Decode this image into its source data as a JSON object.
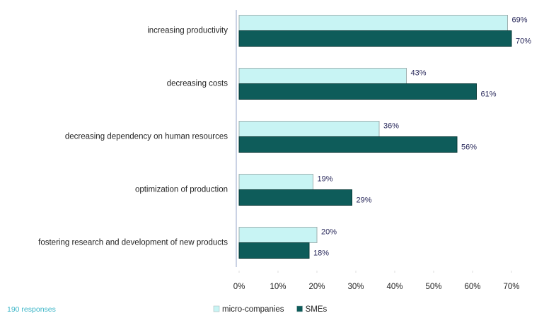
{
  "chart_data": {
    "type": "hbar",
    "categories": [
      "increasing productivity",
      "decreasing costs",
      "decreasing dependency on human resources",
      "optimization of production",
      "fostering research and development of new products"
    ],
    "series": [
      {
        "name": "micro-companies",
        "color": "#c8f4f4",
        "values": [
          69,
          43,
          36,
          19,
          20
        ],
        "value_labels": [
          "69%",
          "43%",
          "36%",
          "19%",
          "20%"
        ]
      },
      {
        "name": "SMEs",
        "color": "#0e5c5a",
        "values": [
          70,
          61,
          56,
          29,
          18
        ],
        "value_labels": [
          "70%",
          "61%",
          "56%",
          "29%",
          "18%"
        ]
      }
    ],
    "xlim": [
      0,
      70
    ],
    "xticks": [
      {
        "value": 0,
        "label": "0%"
      },
      {
        "value": 10,
        "label": "10%"
      },
      {
        "value": 20,
        "label": "20%"
      },
      {
        "value": 30,
        "label": "30%"
      },
      {
        "value": 40,
        "label": "40%"
      },
      {
        "value": 50,
        "label": "50%"
      },
      {
        "value": 60,
        "label": "60%"
      },
      {
        "value": 70,
        "label": "70%"
      }
    ],
    "legend": "bottom",
    "footnote": "190 responses"
  }
}
